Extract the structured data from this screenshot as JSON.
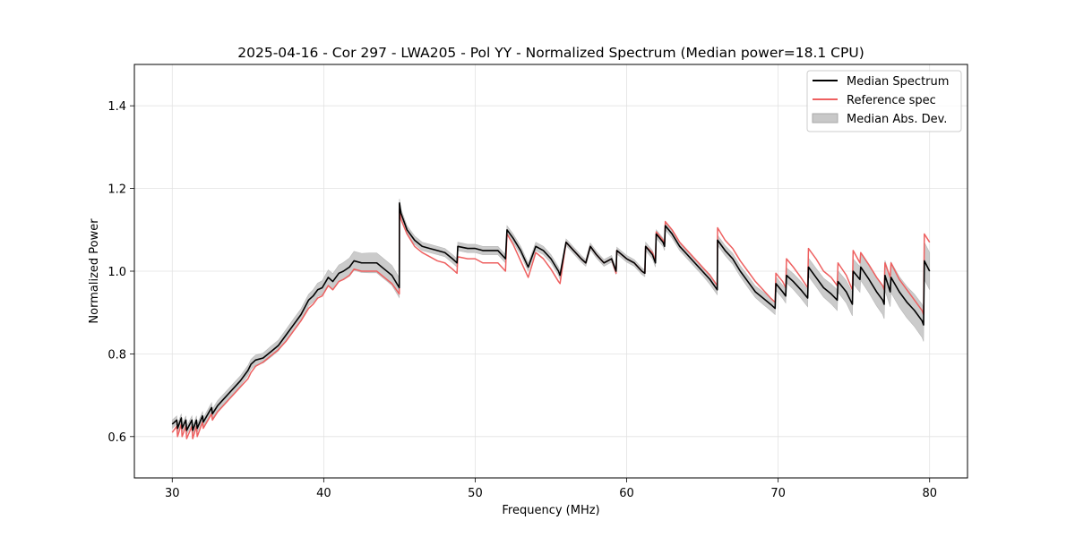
{
  "chart_data": {
    "type": "line",
    "title": "2025-04-16 - Cor 297 - LWA205 - Pol YY - Normalized Spectrum (Median power=18.1 CPU)",
    "xlabel": "Frequency (MHz)",
    "ylabel": "Normalized Power",
    "xlim": [
      27.5,
      82.5
    ],
    "ylim": [
      0.5,
      1.5
    ],
    "xticks": [
      30,
      40,
      50,
      60,
      70,
      80
    ],
    "yticks": [
      0.6,
      0.8,
      1.0,
      1.2,
      1.4
    ],
    "xtick_labels": [
      "30",
      "40",
      "50",
      "60",
      "70",
      "80"
    ],
    "ytick_labels": [
      "0.6",
      "0.8",
      "1.0",
      "1.2",
      "1.4"
    ],
    "grid": true,
    "legend_position": "top-right",
    "colors": {
      "median": "#000000",
      "reference": "#ee6060",
      "mad_fill": "#c8c8c8",
      "overlap": "#7a0f0f"
    },
    "series": [
      {
        "name": "Median Spectrum",
        "x": [
          30.0,
          30.3,
          30.35,
          30.6,
          30.65,
          30.9,
          30.95,
          31.3,
          31.35,
          31.6,
          31.65,
          32.0,
          32.05,
          32.6,
          32.65,
          33.0,
          33.5,
          34.0,
          34.5,
          35.0,
          35.2,
          35.5,
          36.0,
          36.5,
          37.0,
          37.5,
          38.0,
          38.5,
          39.0,
          39.3,
          39.6,
          39.9,
          40.3,
          40.6,
          41.0,
          41.3,
          41.7,
          42.0,
          42.5,
          43.0,
          43.5,
          44.0,
          44.5,
          44.99,
          45.0,
          45.1,
          45.5,
          46.0,
          46.5,
          47.0,
          47.5,
          48.0,
          48.5,
          48.8,
          48.85,
          49.5,
          50.0,
          50.5,
          51.0,
          51.5,
          52.0,
          52.1,
          52.5,
          53.0,
          53.5,
          54.0,
          54.5,
          55.0,
          55.5,
          55.6,
          56.0,
          56.5,
          57.0,
          57.3,
          57.6,
          58.0,
          58.5,
          59.0,
          59.3,
          59.35,
          60.0,
          60.5,
          61.0,
          61.2,
          61.25,
          61.7,
          61.9,
          61.95,
          62.4,
          62.5,
          62.55,
          63.0,
          63.5,
          64.0,
          64.5,
          65.0,
          65.5,
          65.98,
          66.0,
          66.5,
          67.0,
          67.5,
          68.0,
          68.5,
          69.0,
          69.5,
          69.8,
          69.85,
          70.3,
          70.5,
          70.55,
          71.0,
          71.5,
          71.95,
          72.0,
          72.5,
          73.0,
          73.5,
          73.9,
          73.95,
          74.5,
          74.9,
          74.95,
          75.4,
          75.45,
          76.0,
          76.5,
          76.9,
          77.0,
          77.05,
          77.4,
          77.45,
          78.0,
          78.5,
          79.0,
          79.5,
          79.6,
          79.65,
          80.0
        ],
        "values": [
          0.63,
          0.64,
          0.62,
          0.645,
          0.62,
          0.64,
          0.615,
          0.64,
          0.615,
          0.64,
          0.62,
          0.65,
          0.635,
          0.67,
          0.655,
          0.675,
          0.695,
          0.715,
          0.735,
          0.76,
          0.775,
          0.785,
          0.79,
          0.805,
          0.82,
          0.845,
          0.87,
          0.895,
          0.93,
          0.94,
          0.955,
          0.96,
          0.985,
          0.975,
          0.995,
          1.0,
          1.01,
          1.025,
          1.02,
          1.02,
          1.02,
          1.005,
          0.99,
          0.96,
          1.165,
          1.14,
          1.1,
          1.075,
          1.06,
          1.055,
          1.05,
          1.045,
          1.03,
          1.02,
          1.06,
          1.055,
          1.055,
          1.05,
          1.05,
          1.05,
          1.03,
          1.1,
          1.08,
          1.05,
          1.01,
          1.06,
          1.05,
          1.03,
          1.0,
          0.99,
          1.07,
          1.05,
          1.03,
          1.02,
          1.06,
          1.04,
          1.02,
          1.03,
          1.0,
          1.05,
          1.03,
          1.02,
          1.0,
          0.995,
          1.06,
          1.04,
          1.02,
          1.09,
          1.07,
          1.06,
          1.11,
          1.09,
          1.06,
          1.04,
          1.02,
          1.0,
          0.98,
          0.955,
          1.075,
          1.05,
          1.03,
          1.0,
          0.975,
          0.95,
          0.935,
          0.92,
          0.91,
          0.97,
          0.95,
          0.94,
          0.99,
          0.975,
          0.955,
          0.935,
          1.01,
          0.985,
          0.96,
          0.945,
          0.93,
          0.975,
          0.95,
          0.92,
          1.0,
          0.98,
          1.01,
          0.98,
          0.95,
          0.93,
          0.92,
          0.99,
          0.95,
          0.985,
          0.95,
          0.925,
          0.905,
          0.88,
          0.87,
          1.025,
          1.0
        ]
      },
      {
        "name": "Reference spec",
        "x": [
          30.0,
          30.3,
          30.35,
          30.6,
          30.65,
          30.9,
          30.95,
          31.3,
          31.35,
          31.6,
          31.65,
          32.0,
          32.05,
          32.6,
          32.65,
          33.0,
          33.5,
          34.0,
          34.5,
          35.0,
          35.2,
          35.5,
          36.0,
          36.5,
          37.0,
          37.5,
          38.0,
          38.5,
          39.0,
          39.3,
          39.6,
          39.9,
          40.3,
          40.6,
          41.0,
          41.3,
          41.7,
          42.0,
          42.5,
          43.0,
          43.5,
          44.0,
          44.5,
          44.99,
          45.0,
          45.1,
          45.5,
          46.0,
          46.5,
          47.0,
          47.5,
          48.0,
          48.5,
          48.8,
          48.85,
          49.5,
          50.0,
          50.5,
          51.0,
          51.5,
          52.0,
          52.1,
          52.5,
          53.0,
          53.5,
          54.0,
          54.5,
          55.0,
          55.5,
          55.6,
          56.0,
          56.5,
          57.0,
          57.3,
          57.6,
          58.0,
          58.5,
          59.0,
          59.3,
          59.35,
          60.0,
          60.5,
          61.0,
          61.2,
          61.25,
          61.7,
          61.9,
          61.95,
          62.4,
          62.5,
          62.55,
          63.0,
          63.5,
          64.0,
          64.5,
          65.0,
          65.5,
          65.98,
          66.0,
          66.5,
          67.0,
          67.5,
          68.0,
          68.5,
          69.0,
          69.5,
          69.8,
          69.85,
          70.3,
          70.5,
          70.55,
          71.0,
          71.5,
          71.95,
          72.0,
          72.5,
          73.0,
          73.5,
          73.9,
          73.95,
          74.5,
          74.9,
          74.95,
          75.4,
          75.45,
          76.0,
          76.5,
          76.9,
          77.0,
          77.05,
          77.4,
          77.45,
          78.0,
          78.5,
          79.0,
          79.5,
          79.6,
          79.65,
          80.0
        ],
        "values": [
          0.61,
          0.625,
          0.6,
          0.63,
          0.6,
          0.625,
          0.595,
          0.625,
          0.595,
          0.625,
          0.6,
          0.635,
          0.62,
          0.655,
          0.64,
          0.66,
          0.68,
          0.7,
          0.72,
          0.74,
          0.755,
          0.77,
          0.78,
          0.795,
          0.81,
          0.83,
          0.855,
          0.88,
          0.91,
          0.92,
          0.935,
          0.94,
          0.965,
          0.955,
          0.975,
          0.98,
          0.99,
          1.005,
          1.0,
          1.0,
          1.0,
          0.985,
          0.97,
          0.945,
          1.15,
          1.125,
          1.09,
          1.06,
          1.045,
          1.035,
          1.025,
          1.02,
          1.005,
          0.995,
          1.035,
          1.03,
          1.03,
          1.02,
          1.02,
          1.02,
          1.0,
          1.09,
          1.065,
          1.025,
          0.985,
          1.045,
          1.03,
          1.005,
          0.975,
          0.97,
          1.07,
          1.05,
          1.03,
          1.02,
          1.06,
          1.04,
          1.02,
          1.03,
          0.995,
          1.05,
          1.03,
          1.02,
          1.0,
          0.995,
          1.06,
          1.045,
          1.025,
          1.095,
          1.075,
          1.065,
          1.12,
          1.1,
          1.07,
          1.05,
          1.03,
          1.01,
          0.99,
          0.965,
          1.105,
          1.075,
          1.055,
          1.025,
          1.0,
          0.975,
          0.955,
          0.935,
          0.925,
          0.995,
          0.975,
          0.96,
          1.03,
          1.01,
          0.985,
          0.96,
          1.055,
          1.03,
          1.0,
          0.985,
          0.965,
          1.02,
          0.99,
          0.955,
          1.05,
          1.02,
          1.045,
          1.015,
          0.985,
          0.965,
          0.955,
          1.02,
          0.985,
          1.02,
          0.98,
          0.955,
          0.93,
          0.905,
          0.895,
          1.09,
          1.07
        ]
      }
    ],
    "mad_band": {
      "name": "Median Abs. Dev.",
      "x": [
        30.0,
        30.3,
        30.35,
        30.6,
        30.65,
        30.9,
        30.95,
        31.3,
        31.35,
        31.6,
        31.65,
        32.0,
        32.05,
        32.6,
        32.65,
        33.0,
        33.5,
        34.0,
        34.5,
        35.0,
        35.2,
        35.5,
        36.0,
        36.5,
        37.0,
        37.5,
        38.0,
        38.5,
        39.0,
        39.3,
        39.6,
        39.9,
        40.3,
        40.6,
        41.0,
        41.3,
        41.7,
        42.0,
        42.5,
        43.0,
        43.5,
        44.0,
        44.5,
        44.99,
        45.0,
        45.1,
        45.5,
        46.0,
        46.5,
        47.0,
        47.5,
        48.0,
        48.5,
        48.8,
        48.85,
        49.5,
        50.0,
        50.5,
        51.0,
        51.5,
        52.0,
        52.1,
        52.5,
        53.0,
        53.5,
        54.0,
        54.5,
        55.0,
        55.5,
        55.6,
        56.0,
        56.5,
        57.0,
        57.3,
        57.6,
        58.0,
        58.5,
        59.0,
        59.3,
        59.35,
        60.0,
        60.5,
        61.0,
        61.2,
        61.25,
        61.7,
        61.9,
        61.95,
        62.4,
        62.5,
        62.55,
        63.0,
        63.5,
        64.0,
        64.5,
        65.0,
        65.5,
        65.98,
        66.0,
        66.5,
        67.0,
        67.5,
        68.0,
        68.5,
        69.0,
        69.5,
        69.8,
        69.85,
        70.3,
        70.5,
        70.55,
        71.0,
        71.5,
        71.95,
        72.0,
        72.5,
        73.0,
        73.5,
        73.9,
        73.95,
        74.5,
        74.9,
        74.95,
        75.4,
        75.45,
        76.0,
        76.5,
        76.9,
        77.0,
        77.05,
        77.4,
        77.45,
        78.0,
        78.5,
        79.0,
        79.5,
        79.6,
        79.65,
        80.0
      ],
      "halfwidth": [
        0.01,
        0.01,
        0.01,
        0.01,
        0.01,
        0.01,
        0.01,
        0.01,
        0.01,
        0.01,
        0.01,
        0.01,
        0.01,
        0.012,
        0.012,
        0.012,
        0.012,
        0.012,
        0.012,
        0.012,
        0.012,
        0.012,
        0.012,
        0.013,
        0.013,
        0.013,
        0.014,
        0.014,
        0.014,
        0.015,
        0.016,
        0.017,
        0.018,
        0.019,
        0.02,
        0.021,
        0.022,
        0.023,
        0.023,
        0.024,
        0.024,
        0.024,
        0.024,
        0.024,
        0.01,
        0.01,
        0.01,
        0.01,
        0.01,
        0.01,
        0.01,
        0.01,
        0.01,
        0.01,
        0.01,
        0.01,
        0.01,
        0.01,
        0.01,
        0.01,
        0.01,
        0.01,
        0.01,
        0.01,
        0.01,
        0.01,
        0.01,
        0.01,
        0.01,
        0.01,
        0.008,
        0.008,
        0.008,
        0.008,
        0.008,
        0.008,
        0.008,
        0.008,
        0.008,
        0.008,
        0.008,
        0.008,
        0.008,
        0.008,
        0.01,
        0.01,
        0.01,
        0.01,
        0.01,
        0.01,
        0.01,
        0.01,
        0.01,
        0.01,
        0.01,
        0.01,
        0.012,
        0.012,
        0.012,
        0.012,
        0.013,
        0.013,
        0.014,
        0.014,
        0.015,
        0.015,
        0.015,
        0.016,
        0.016,
        0.017,
        0.018,
        0.019,
        0.02,
        0.021,
        0.022,
        0.022,
        0.023,
        0.024,
        0.025,
        0.026,
        0.027,
        0.028,
        0.03,
        0.031,
        0.032,
        0.033,
        0.034,
        0.035,
        0.035,
        0.036,
        0.036,
        0.037,
        0.037,
        0.038,
        0.039,
        0.04,
        0.04,
        0.045,
        0.045
      ]
    }
  }
}
